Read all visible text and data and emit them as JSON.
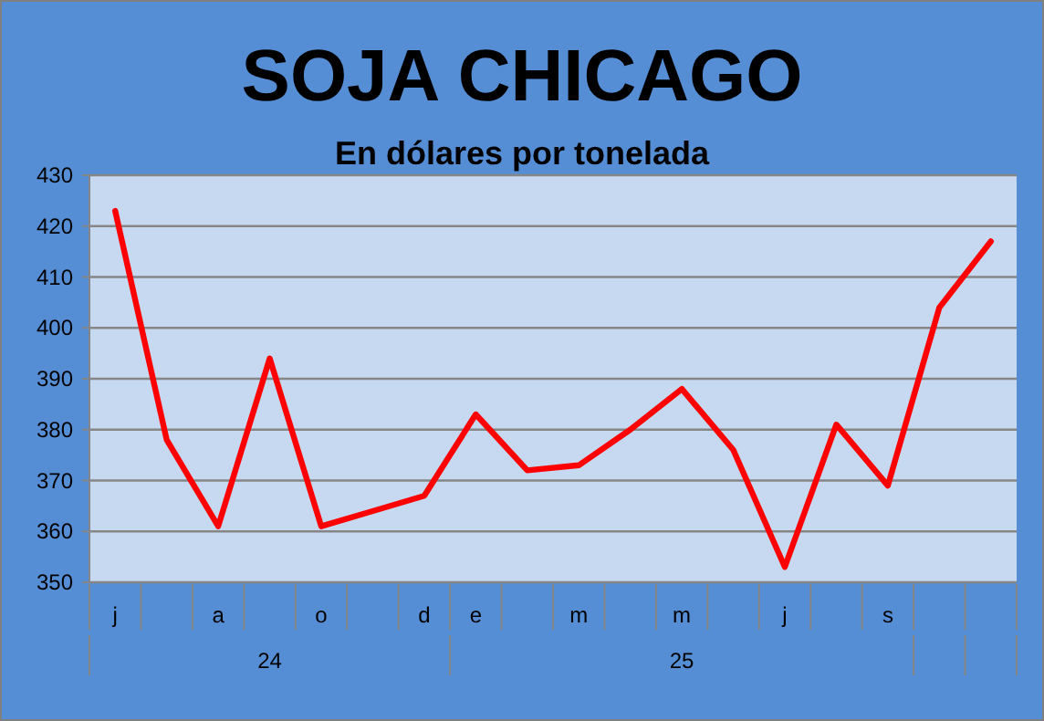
{
  "chart_data": {
    "type": "line",
    "title": "SOJA CHICAGO",
    "subtitle": "En dólares por tonelada",
    "categories": [
      "j",
      null,
      "a",
      null,
      "o",
      null,
      "d",
      "e",
      null,
      "m",
      null,
      "m",
      null,
      "j",
      null,
      "s",
      null,
      null
    ],
    "series": [
      {
        "color": "#ff0000",
        "values": [
          423,
          378,
          361,
          394,
          361,
          364,
          367,
          383,
          372,
          373,
          380,
          388,
          376,
          353,
          381,
          369,
          404,
          417
        ]
      }
    ],
    "ylim": [
      350,
      430
    ],
    "yticks": [
      350,
      360,
      370,
      380,
      390,
      400,
      410,
      420,
      430
    ],
    "grid": "y",
    "marker": "none",
    "line_style": "solid",
    "annotations": [
      "24",
      "25"
    ]
  }
}
